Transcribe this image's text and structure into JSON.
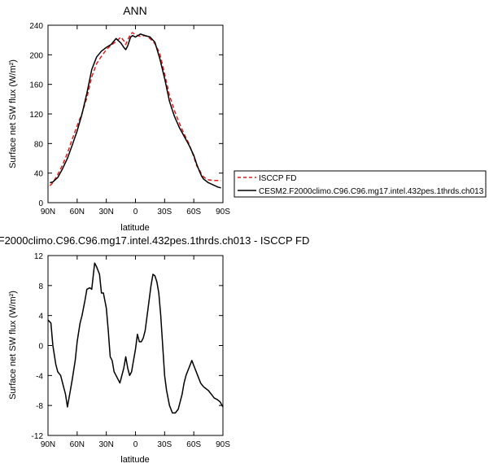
{
  "chart_data": [
    {
      "type": "line",
      "title": "ANN",
      "xlabel": "latitude",
      "ylabel": "Surface net SW flux (W/m²)",
      "xlim": [
        90,
        -90
      ],
      "ylim": [
        0,
        240
      ],
      "x_ticks": [
        90,
        60,
        30,
        0,
        -30,
        -60,
        -90
      ],
      "x_tick_labels": [
        "90N",
        "60N",
        "30N",
        "0",
        "30S",
        "60S",
        "90S"
      ],
      "y_ticks": [
        0,
        40,
        80,
        120,
        160,
        200,
        240
      ],
      "grid": false,
      "legend_position": "right",
      "series": [
        {
          "name": "ISCCP FD",
          "color": "#e41a1c",
          "dash": "dashed",
          "x": [
            88,
            85,
            80,
            75,
            70,
            65,
            60,
            55,
            50,
            45,
            40,
            35,
            30,
            25,
            20,
            15,
            12,
            10,
            8,
            5,
            3,
            0,
            -5,
            -10,
            -15,
            -20,
            -25,
            -30,
            -35,
            -40,
            -45,
            -50,
            -55,
            -60,
            -63,
            -66,
            -68,
            -70,
            -72,
            -75,
            -80,
            -85,
            -88
          ],
          "y": [
            23,
            27,
            38,
            51,
            67,
            86,
            104,
            121,
            142,
            170,
            188,
            198,
            207,
            213,
            218,
            224,
            219,
            214,
            220,
            228,
            230,
            227,
            225,
            226,
            222,
            215,
            202,
            174,
            145,
            125,
            108,
            93,
            80,
            62,
            50,
            44,
            38,
            35,
            33,
            31,
            30,
            30,
            30
          ]
        },
        {
          "name": "CESM2.F2000climo.C96.C96.mg17.intel.432pes.1thrds.ch013",
          "color": "#000000",
          "dash": "solid",
          "x": [
            88,
            85,
            80,
            75,
            70,
            65,
            60,
            55,
            50,
            45,
            40,
            35,
            30,
            25,
            20,
            15,
            12,
            10,
            8,
            5,
            3,
            0,
            -5,
            -10,
            -15,
            -20,
            -25,
            -30,
            -35,
            -40,
            -45,
            -50,
            -55,
            -60,
            -63,
            -66,
            -68,
            -70,
            -72,
            -75,
            -80,
            -85,
            -88
          ],
          "y": [
            27,
            28,
            34,
            46,
            60,
            78,
            97,
            120,
            148,
            180,
            197,
            205,
            210,
            214,
            222,
            216,
            210,
            207,
            212,
            224,
            226,
            224,
            228,
            226,
            224,
            217,
            195,
            168,
            137,
            117,
            102,
            90,
            78,
            64,
            52,
            42,
            36,
            32,
            30,
            27,
            24,
            21,
            20
          ]
        }
      ]
    },
    {
      "type": "line",
      "title": "F2000climo.C96.C96.mg17.intel.432pes.1thrds.ch013 - ISCCP FD",
      "xlabel": "latitude",
      "ylabel": "Surface net SW flux (W/m²)",
      "xlim": [
        90,
        -90
      ],
      "ylim": [
        -12,
        12
      ],
      "x_ticks": [
        90,
        60,
        30,
        0,
        -30,
        -60,
        -90
      ],
      "x_tick_labels": [
        "90N",
        "60N",
        "30N",
        "0",
        "30S",
        "60S",
        "90S"
      ],
      "y_ticks": [
        -12,
        -8,
        -4,
        0,
        4,
        8,
        12
      ],
      "grid": false,
      "series": [
        {
          "color": "#000000",
          "dash": "solid",
          "x": [
            90,
            87,
            85,
            82,
            80,
            77,
            74,
            72,
            70,
            67,
            65,
            62,
            60,
            57,
            55,
            52,
            50,
            47,
            45,
            42,
            40,
            37,
            35,
            33,
            30,
            28,
            26,
            24,
            22,
            20,
            18,
            16,
            14,
            12,
            10,
            8,
            6,
            4,
            2,
            0,
            -2,
            -4,
            -6,
            -8,
            -10,
            -12,
            -14,
            -16,
            -18,
            -20,
            -22,
            -24,
            -26,
            -28,
            -30,
            -32,
            -35,
            -38,
            -41,
            -44,
            -46,
            -48,
            -50,
            -52,
            -55,
            -58,
            -61,
            -64,
            -67,
            -70,
            -72,
            -75,
            -78,
            -81,
            -84,
            -87,
            -90
          ],
          "y": [
            3.4,
            3.0,
            0.0,
            -2.5,
            -3.5,
            -4.0,
            -5.5,
            -6.5,
            -8.2,
            -6.0,
            -4.5,
            -2.0,
            0.5,
            3.0,
            4.0,
            6.0,
            7.5,
            7.7,
            7.5,
            11.0,
            10.5,
            9.5,
            7.0,
            7.0,
            5.0,
            2.0,
            -1.5,
            -2.0,
            -3.5,
            -4.0,
            -4.5,
            -5.0,
            -4.0,
            -3.0,
            -1.5,
            -3.0,
            -4.0,
            -3.5,
            -2.0,
            -0.5,
            1.5,
            0.5,
            0.5,
            1.0,
            2.0,
            4.0,
            6.0,
            8.0,
            9.5,
            9.3,
            8.5,
            7.0,
            4.0,
            0.0,
            -4.0,
            -6.0,
            -8.0,
            -9.0,
            -9.0,
            -8.5,
            -7.5,
            -6.5,
            -5.0,
            -4.0,
            -3.0,
            -2.0,
            -3.0,
            -4.0,
            -5.0,
            -5.5,
            -5.7,
            -6.0,
            -6.5,
            -7.0,
            -7.2,
            -7.5,
            -8.2
          ]
        }
      ]
    }
  ]
}
